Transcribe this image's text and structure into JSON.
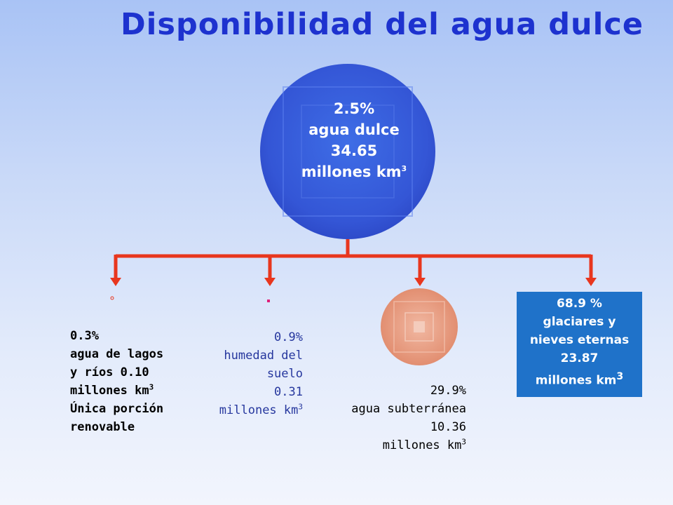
{
  "title": "Disponibilidad del agua dulce",
  "center": {
    "percent": "2.5%",
    "label": "agua dulce",
    "amount": "34.65",
    "unit": "millones km",
    "unit_sup": "3"
  },
  "branches": {
    "lagos": {
      "lines": [
        "0.3%",
        "agua de lagos",
        "y ríos 0.10",
        "millones km",
        "Única porción",
        "renovable"
      ],
      "sup": "3"
    },
    "humedad": {
      "lines": [
        "0.9%",
        "humedad del",
        "suelo",
        "0.31",
        "millones km"
      ],
      "sup": "3"
    },
    "subterranea": {
      "lines": [
        "29.9%",
        "agua subterránea",
        "10.36",
        "millones km"
      ],
      "sup": "3"
    },
    "glaciares": {
      "lines": [
        "68.9 %",
        "glaciares y",
        "nieves eternas",
        "23.87",
        "millones km"
      ],
      "sup": "3"
    }
  },
  "colors": {
    "title": "#1d32cf",
    "central_circle": "#3f67e0",
    "connector": "#e8361e",
    "groundwater_circle": "#e49277",
    "glaciers_box": "#1f72c9",
    "humedad_text": "#26379e"
  }
}
